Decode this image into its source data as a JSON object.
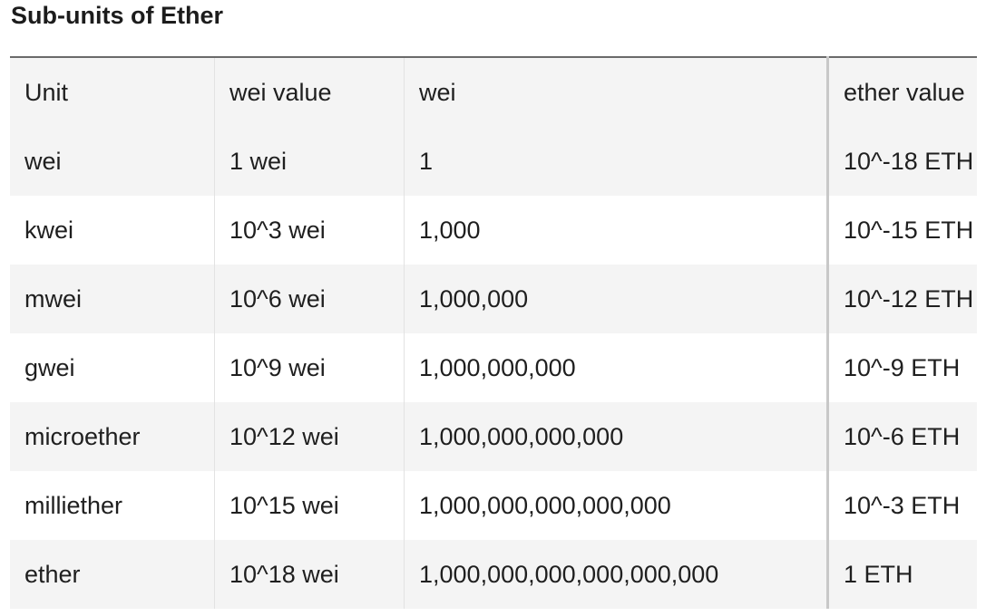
{
  "title": "Sub-units of Ether",
  "table": {
    "headers": [
      "Unit",
      "wei value",
      "wei",
      "ether value"
    ],
    "rows": [
      [
        "wei",
        "1 wei",
        "1",
        "10^-18 ETH"
      ],
      [
        "kwei",
        "10^3 wei",
        "1,000",
        "10^-15 ETH"
      ],
      [
        "mwei",
        "10^6 wei",
        "1,000,000",
        "10^-12 ETH"
      ],
      [
        "gwei",
        "10^9 wei",
        "1,000,000,000",
        "10^-9 ETH"
      ],
      [
        "microether",
        "10^12 wei",
        "1,000,000,000,000",
        "10^-6 ETH"
      ],
      [
        "milliether",
        "10^15 wei",
        "1,000,000,000,000,000",
        "10^-3 ETH"
      ],
      [
        "ether",
        "10^18 wei",
        "1,000,000,000,000,000,000",
        "1 ETH"
      ]
    ]
  }
}
